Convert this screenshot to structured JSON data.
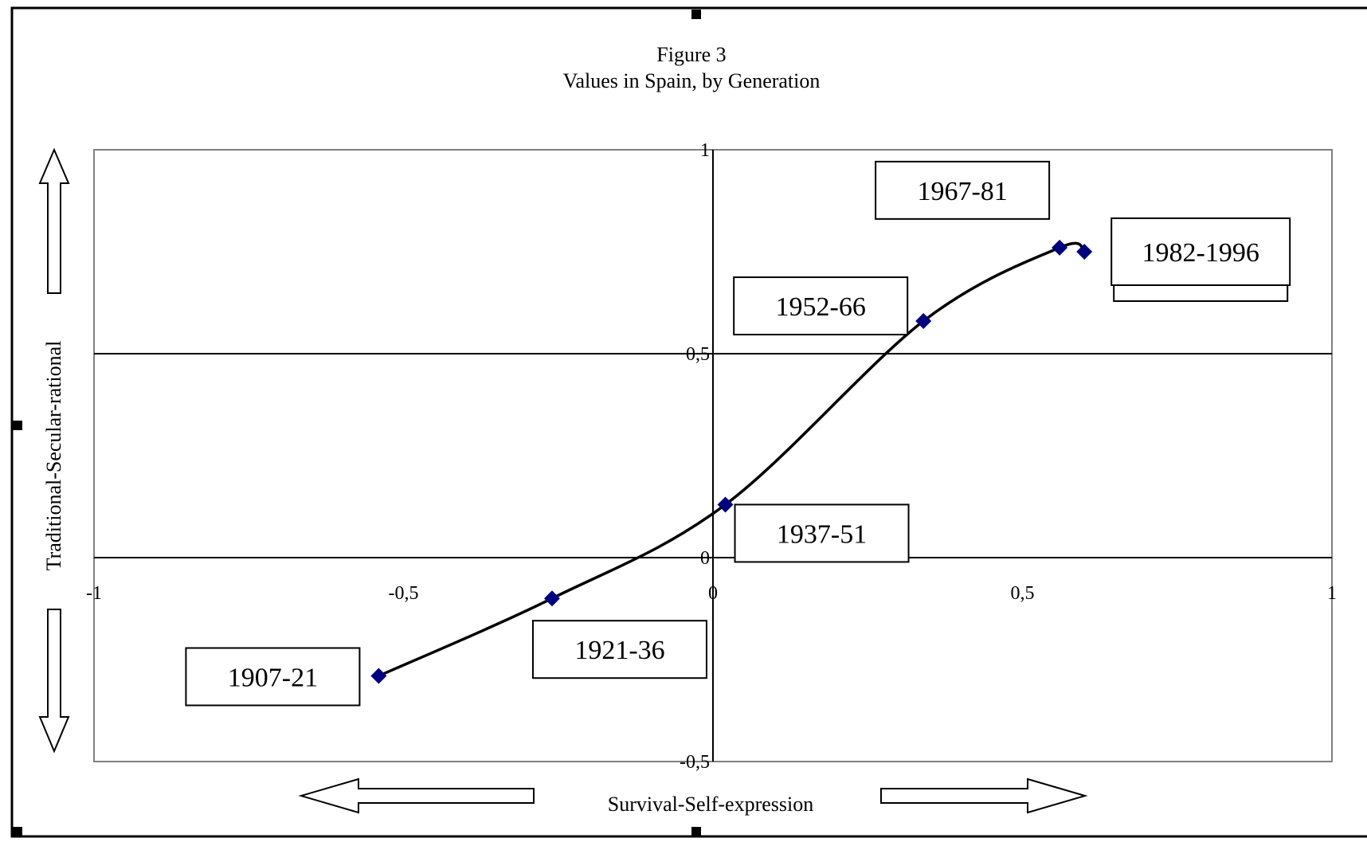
{
  "chart_data": {
    "type": "line",
    "title": "Figure 3",
    "subtitle": "Values in Spain, by Generation",
    "xlabel": "Survival-Self-expression",
    "ylabel": "Traditional-Secular-rational",
    "xlim": [
      -1,
      1
    ],
    "ylim": [
      -0.5,
      1
    ],
    "x_ticks": [
      "-1",
      "-0,5",
      "0",
      "0,5",
      "1"
    ],
    "y_ticks": [
      "1",
      "0,5",
      "0",
      "-0,5"
    ],
    "grid": false,
    "legend": "none",
    "series_color": "#00007f",
    "line_color": "#000000",
    "points": [
      {
        "label": "1907-21",
        "x": -0.54,
        "y": -0.29
      },
      {
        "label": "1921-36",
        "x": -0.26,
        "y": -0.1
      },
      {
        "label": "1937-51",
        "x": 0.02,
        "y": 0.13
      },
      {
        "label": "1952-66",
        "x": 0.34,
        "y": 0.58
      },
      {
        "label": "1967-81",
        "x": 0.56,
        "y": 0.76
      },
      {
        "label": "1982-1996",
        "x": 0.6,
        "y": 0.75
      }
    ]
  }
}
